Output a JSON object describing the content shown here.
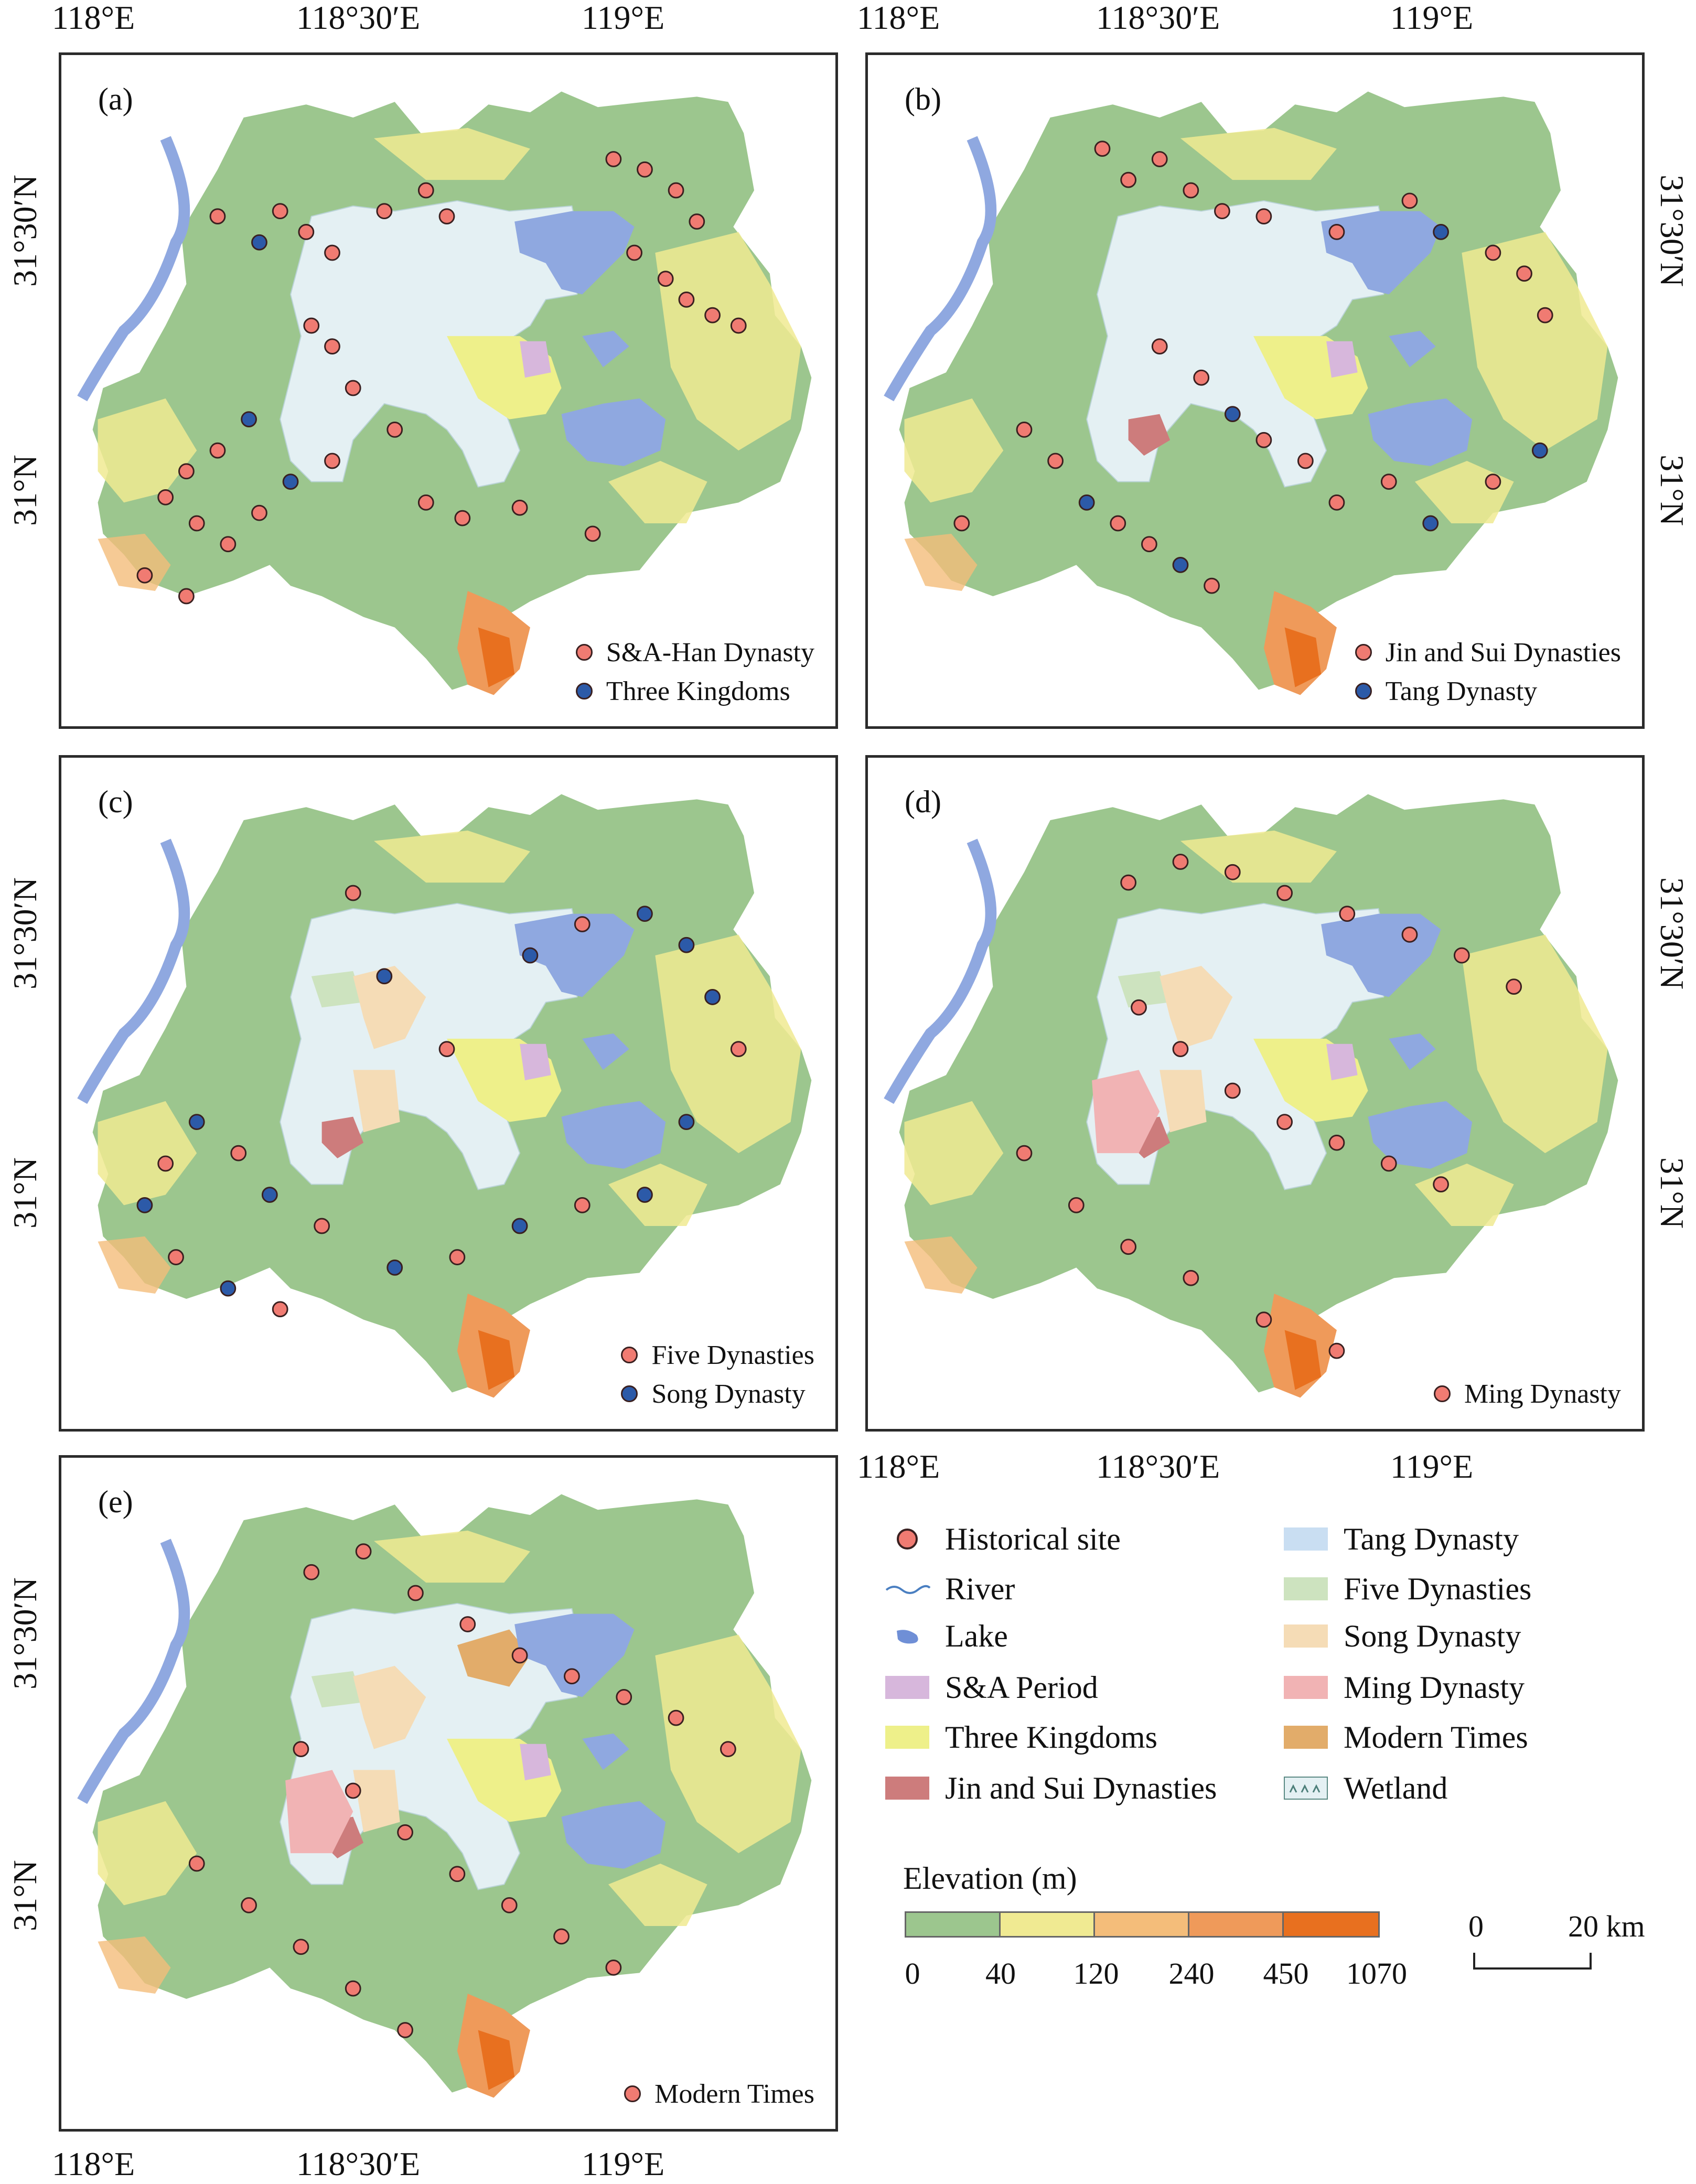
{
  "coords": {
    "lon": [
      "118°E",
      "118°30′E",
      "119°E"
    ],
    "lat": [
      "31°30′N",
      "31°N"
    ]
  },
  "panels": [
    {
      "label": "(a)",
      "legend": [
        {
          "text": "S&A-Han Dynasty",
          "color": "#f07b72"
        },
        {
          "text": "Three Kingdoms",
          "color": "#2c5aa8"
        }
      ]
    },
    {
      "label": "(b)",
      "legend": [
        {
          "text": "Jin and Sui Dynasties",
          "color": "#f07b72"
        },
        {
          "text": "Tang Dynasty",
          "color": "#2c5aa8"
        }
      ]
    },
    {
      "label": "(c)",
      "legend": [
        {
          "text": "Five Dynasties",
          "color": "#f07b72"
        },
        {
          "text": "Song Dynasty",
          "color": "#2c5aa8"
        }
      ]
    },
    {
      "label": "(d)",
      "legend": [
        {
          "text": "Ming Dynasty",
          "color": "#f07b72"
        }
      ]
    },
    {
      "label": "(e)",
      "legend": [
        {
          "text": "Modern Times",
          "color": "#f07b72"
        }
      ]
    }
  ],
  "legend": {
    "historical_site": "Historical site",
    "river": "River",
    "lake": "Lake",
    "sa_period": "S&A Period",
    "three_kingdoms": "Three Kingdoms",
    "jin_sui": "Jin and Sui Dynasties",
    "tang": "Tang Dynasty",
    "five_dynasties": "Five Dynasties",
    "song": "Song Dynasty",
    "ming": "Ming Dynasty",
    "modern": "Modern Times",
    "wetland": "Wetland"
  },
  "legend_colors": {
    "site": "#f07b72",
    "river": "#4a7fc1",
    "lake": "#8fa8e0",
    "sa_period": "#d7b7dc",
    "three_kingdoms": "#eef08a",
    "jin_sui": "#cd7c7c",
    "tang": "#c9def2",
    "five_dynasties": "#cde3bf",
    "song": "#f5dcb6",
    "ming": "#f1b3b4",
    "modern": "#e2ac6a",
    "wetland": "#e4f0f3"
  },
  "elevation": {
    "title": "Elevation (m)",
    "ticks": [
      "0",
      "40",
      "120",
      "240",
      "450",
      "1070"
    ],
    "colors": [
      "#9cc68e",
      "#f0ea92",
      "#f4bd7a",
      "#ef9a5a",
      "#e8701f"
    ]
  },
  "scalebar": {
    "zero": "0",
    "label": "20 km"
  }
}
